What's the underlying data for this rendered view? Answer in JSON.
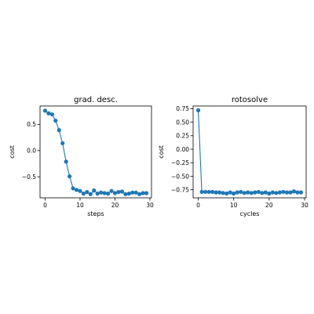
{
  "figure": {
    "background": "#ffffff"
  },
  "chart_data": [
    {
      "type": "line",
      "title": "grad. desc.",
      "xlabel": "steps",
      "ylabel": "cost",
      "xlim": [
        -1.45,
        30.45
      ],
      "ylim": [
        -0.9,
        0.85
      ],
      "xticks": [
        0,
        10,
        20,
        30
      ],
      "xtick_labels": [
        "0",
        "10",
        "20",
        "30"
      ],
      "yticks": [
        -0.5,
        0.0,
        0.5
      ],
      "ytick_labels": [
        "−0.5",
        "0.0",
        "0.5"
      ],
      "grid": false,
      "series": [
        {
          "color": "#1f77b4",
          "marker": "circle",
          "x": [
            0,
            1,
            2,
            3,
            4,
            5,
            6,
            7,
            8,
            9,
            10,
            11,
            12,
            13,
            14,
            15,
            16,
            17,
            18,
            19,
            20,
            21,
            22,
            23,
            24,
            25,
            26,
            27,
            28,
            29
          ],
          "y": [
            0.76,
            0.71,
            0.69,
            0.57,
            0.39,
            0.14,
            -0.21,
            -0.49,
            -0.72,
            -0.75,
            -0.77,
            -0.82,
            -0.79,
            -0.83,
            -0.76,
            -0.82,
            -0.8,
            -0.81,
            -0.82,
            -0.77,
            -0.81,
            -0.79,
            -0.78,
            -0.83,
            -0.82,
            -0.8,
            -0.8,
            -0.83,
            -0.81,
            -0.81
          ]
        }
      ]
    },
    {
      "type": "line",
      "title": "rotosolve",
      "xlabel": "cycles",
      "ylabel": "cost",
      "xlim": [
        -1.45,
        30.45
      ],
      "ylim": [
        -0.9,
        0.8
      ],
      "xticks": [
        0,
        10,
        20,
        30
      ],
      "xtick_labels": [
        "0",
        "10",
        "20",
        "30"
      ],
      "yticks": [
        -0.75,
        -0.5,
        -0.25,
        0.0,
        0.25,
        0.5,
        0.75
      ],
      "ytick_labels": [
        "−0.75",
        "−0.50",
        "−0.25",
        "0.00",
        "0.25",
        "0.50",
        "0.75"
      ],
      "grid": false,
      "series": [
        {
          "color": "#1f77b4",
          "marker": "circle",
          "x": [
            0,
            1,
            2,
            3,
            4,
            5,
            6,
            7,
            8,
            9,
            10,
            11,
            12,
            13,
            14,
            15,
            16,
            17,
            18,
            19,
            20,
            21,
            22,
            23,
            24,
            25,
            26,
            27,
            28,
            29
          ],
          "y": [
            0.72,
            -0.79,
            -0.79,
            -0.79,
            -0.79,
            -0.8,
            -0.8,
            -0.81,
            -0.82,
            -0.8,
            -0.82,
            -0.8,
            -0.79,
            -0.81,
            -0.8,
            -0.81,
            -0.8,
            -0.79,
            -0.81,
            -0.8,
            -0.82,
            -0.8,
            -0.81,
            -0.8,
            -0.79,
            -0.8,
            -0.8,
            -0.78,
            -0.8,
            -0.8
          ]
        }
      ]
    }
  ]
}
